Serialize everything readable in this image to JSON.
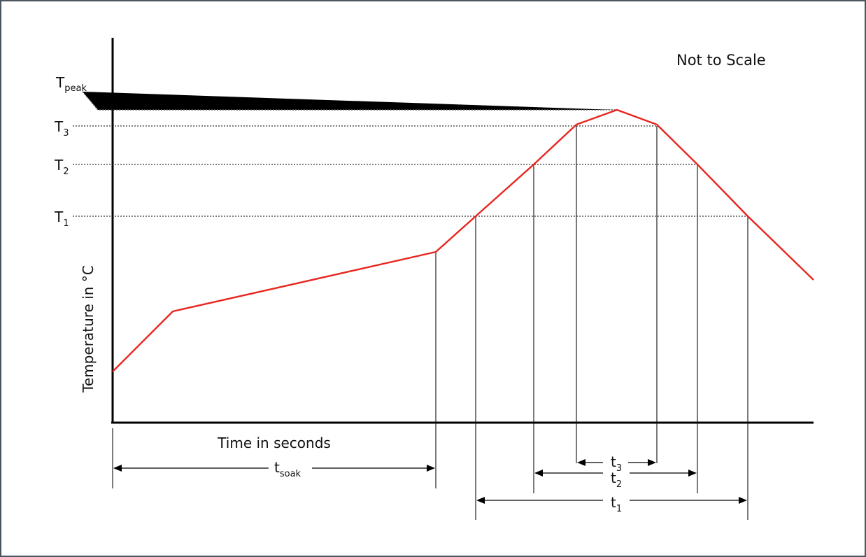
{
  "note": "Not to Scale",
  "y_axis_label": "Temperature in °C",
  "x_axis_label": "Time in seconds",
  "temperature_levels": [
    {
      "main": "T",
      "sub": "peak"
    },
    {
      "main": "T",
      "sub": "3"
    },
    {
      "main": "T",
      "sub": "2"
    },
    {
      "main": "T",
      "sub": "1"
    }
  ],
  "time_intervals": [
    {
      "main": "t",
      "sub": "soak"
    },
    {
      "main": "t",
      "sub": "3"
    },
    {
      "main": "t",
      "sub": "2"
    },
    {
      "main": "t",
      "sub": "1"
    }
  ],
  "colors": {
    "profile_line": "#e8261f",
    "frame_border": "#4a5560",
    "axis": "#000000"
  }
}
